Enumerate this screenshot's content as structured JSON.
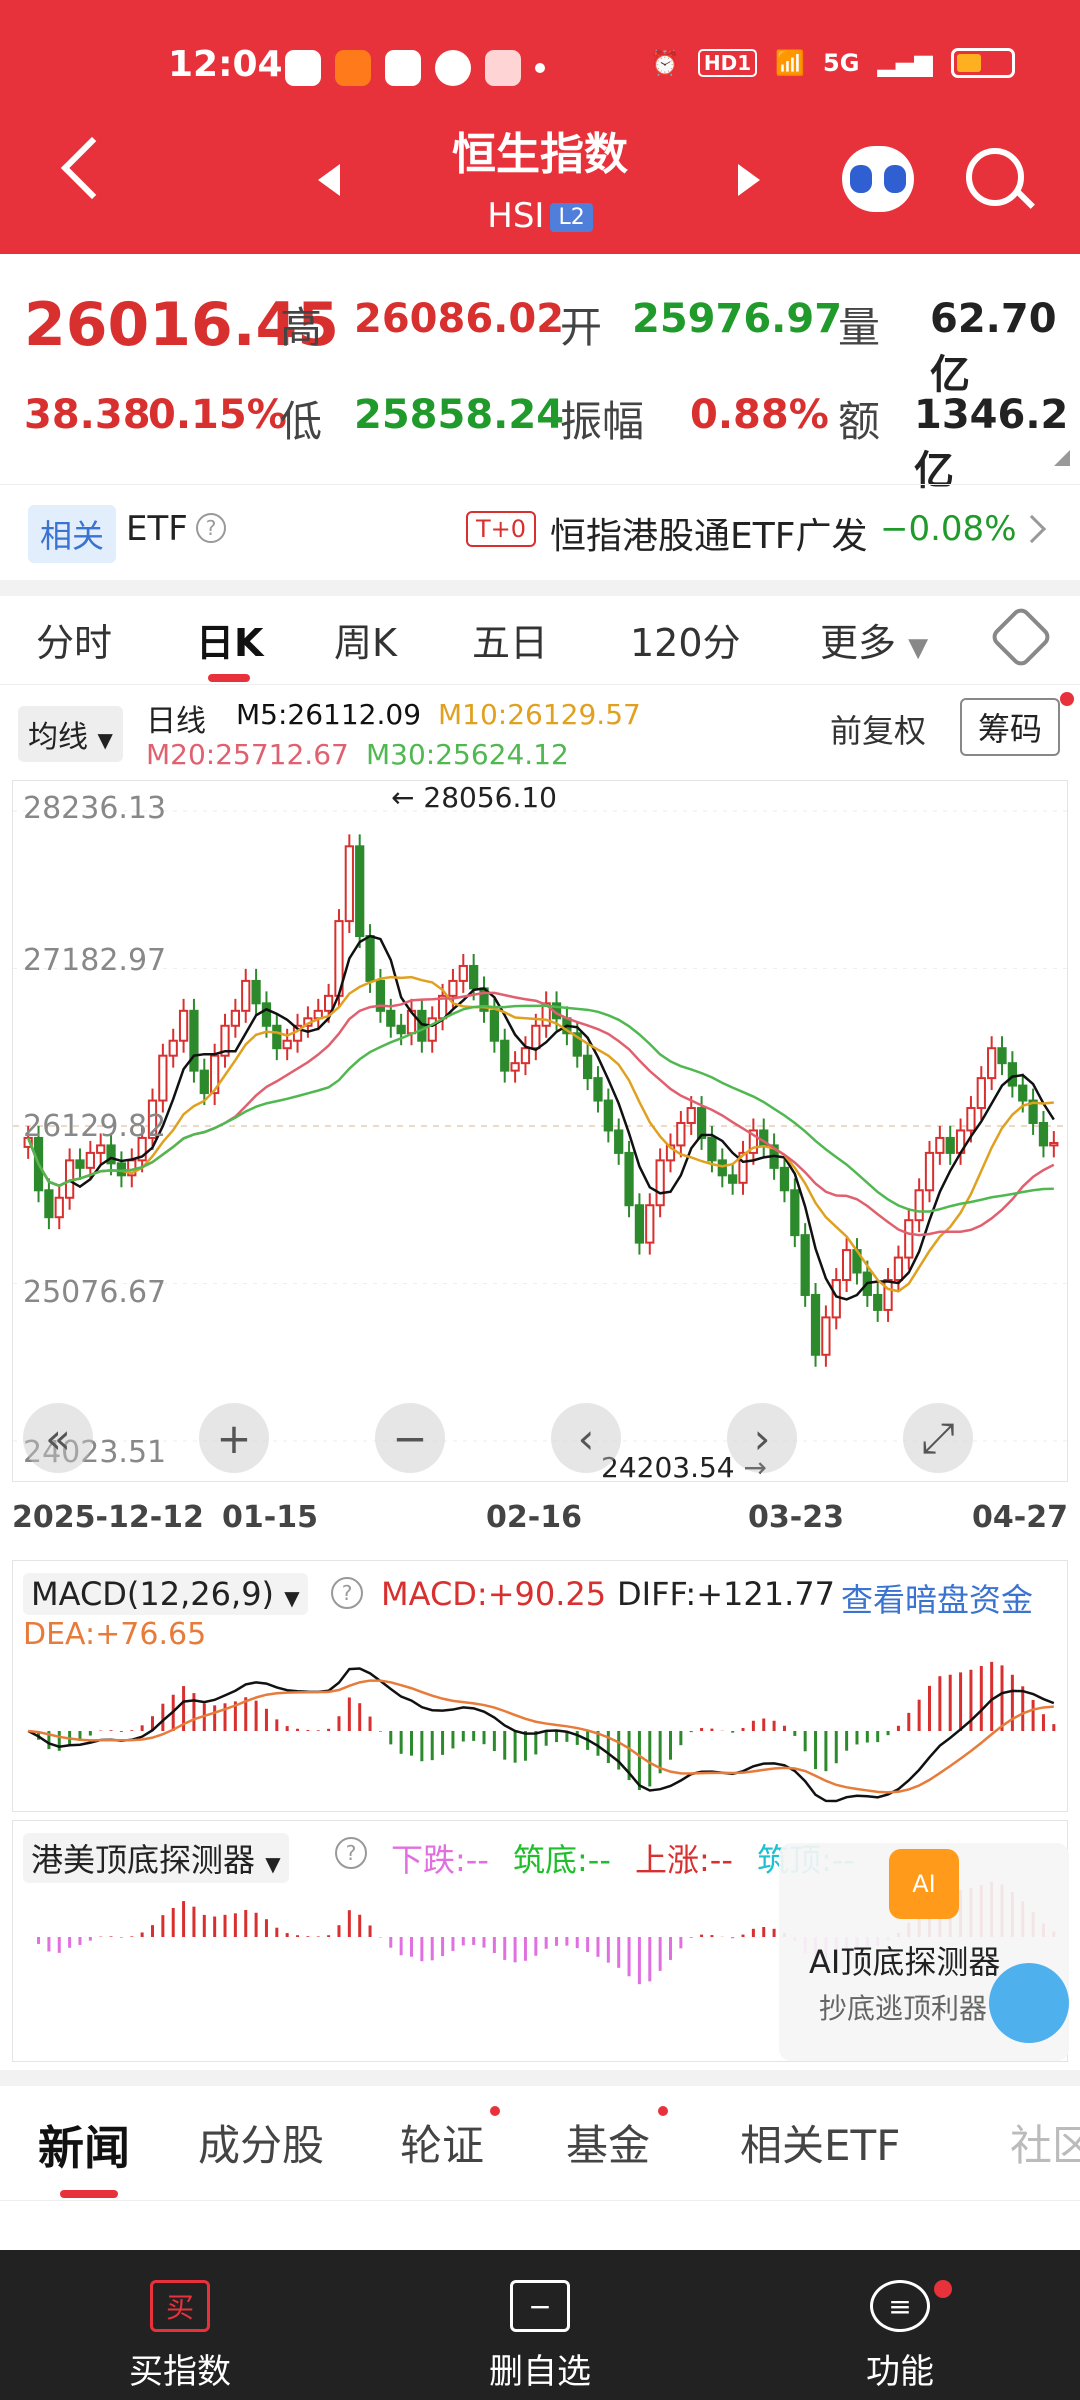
{
  "status": {
    "time": "12:04",
    "app_icons": [
      "home-app-icon",
      "kuaishou-app-icon",
      "toutiao-app-icon",
      "spotify-app-icon",
      "video-app-icon"
    ],
    "net_label": "5G",
    "hd_label": "HD1"
  },
  "header": {
    "title": "恒生指数",
    "code": "HSI",
    "level": "L2",
    "bg_color": "#e8323b"
  },
  "quote": {
    "price": "26016.45",
    "change": "38.38",
    "change_pct": "0.15%",
    "high_label": "高",
    "high": "26086.02",
    "open_label": "开",
    "open": "25976.97",
    "volume_label": "量",
    "volume": "62.70亿",
    "low_label": "低",
    "low": "25858.24",
    "amp_label": "振幅",
    "amp": "0.88%",
    "amount_label": "额",
    "amount": "1346.2亿"
  },
  "etf": {
    "tag": "相关",
    "label": "ETF",
    "t0": "T+0",
    "name": "恒指港股通ETF广发",
    "change": "−0.08%"
  },
  "tabs": [
    "分时",
    "日K",
    "周K",
    "五日",
    "120分",
    "更多"
  ],
  "active_tab": "日K",
  "ma_bar": {
    "selector": "均线",
    "period": "日线",
    "m5": "M5:26112.09",
    "m10": "M10:26129.57",
    "m20": "M20:25712.67",
    "m30": "M30:25624.12",
    "adjust": "前复权",
    "chips": "筹码",
    "m5_color": "#111111",
    "m10_color": "#e0a020",
    "m20_color": "#e06070",
    "m30_color": "#50b850"
  },
  "chart_data": {
    "type": "candlestick",
    "y_labels": [
      "28236.13",
      "27182.97",
      "26129.82",
      "25076.67",
      "24023.51"
    ],
    "ylim": [
      24023.51,
      28236.13
    ],
    "x_labels": [
      "2025-12-12",
      "01-15",
      "02-16",
      "03-23",
      "04-27"
    ],
    "high_marker": "28056.10",
    "low_marker": "24203.54",
    "closes": [
      26050,
      25700,
      25520,
      25650,
      25900,
      25850,
      25950,
      26000,
      25880,
      25800,
      25900,
      26050,
      26300,
      26600,
      26700,
      26900,
      26500,
      26350,
      26600,
      26800,
      26900,
      27100,
      26950,
      26800,
      26650,
      26700,
      26800,
      26850,
      26900,
      27000,
      27500,
      28000,
      27400,
      27100,
      26900,
      26800,
      26750,
      26900,
      26700,
      26850,
      27000,
      27100,
      27200,
      27050,
      26900,
      26700,
      26500,
      26550,
      26650,
      26800,
      26950,
      26850,
      26750,
      26600,
      26450,
      26300,
      26100,
      25950,
      25600,
      25350,
      25600,
      25900,
      26000,
      26150,
      26250,
      26050,
      25900,
      25800,
      25750,
      25950,
      26100,
      26000,
      25850,
      25700,
      25400,
      25000,
      24600,
      24850,
      25100,
      25300,
      25150,
      25000,
      24900,
      25100,
      25250,
      25500,
      25700,
      25950,
      26050,
      25950,
      26100,
      26250,
      26450,
      26650,
      26550,
      26400,
      26300,
      26150,
      26000,
      26016
    ]
  },
  "controls": [
    "rewind-button",
    "zoom-in-button",
    "zoom-out-button",
    "pan-left-button",
    "pan-right-button",
    "fullscreen-button"
  ],
  "macd": {
    "name": "MACD(12,26,9)",
    "macd": "MACD:+90.25",
    "diff": "DIFF:+121.77",
    "link": "查看暗盘资金",
    "dea": "DEA:+76.65"
  },
  "detector": {
    "name": "港美顶底探测器",
    "down": "下跌:--",
    "bottom": "筑底:--",
    "up": "上涨:--",
    "top": "筑顶:--",
    "promo_title": "AI顶底探测器",
    "promo_sub": "抄底逃顶利器"
  },
  "news_tabs": [
    "新闻",
    "成分股",
    "轮证",
    "基金",
    "相关ETF",
    "社区"
  ],
  "footer": {
    "buy": "买指数",
    "buy_icon": "买",
    "remove": "删自选",
    "func": "功能"
  }
}
